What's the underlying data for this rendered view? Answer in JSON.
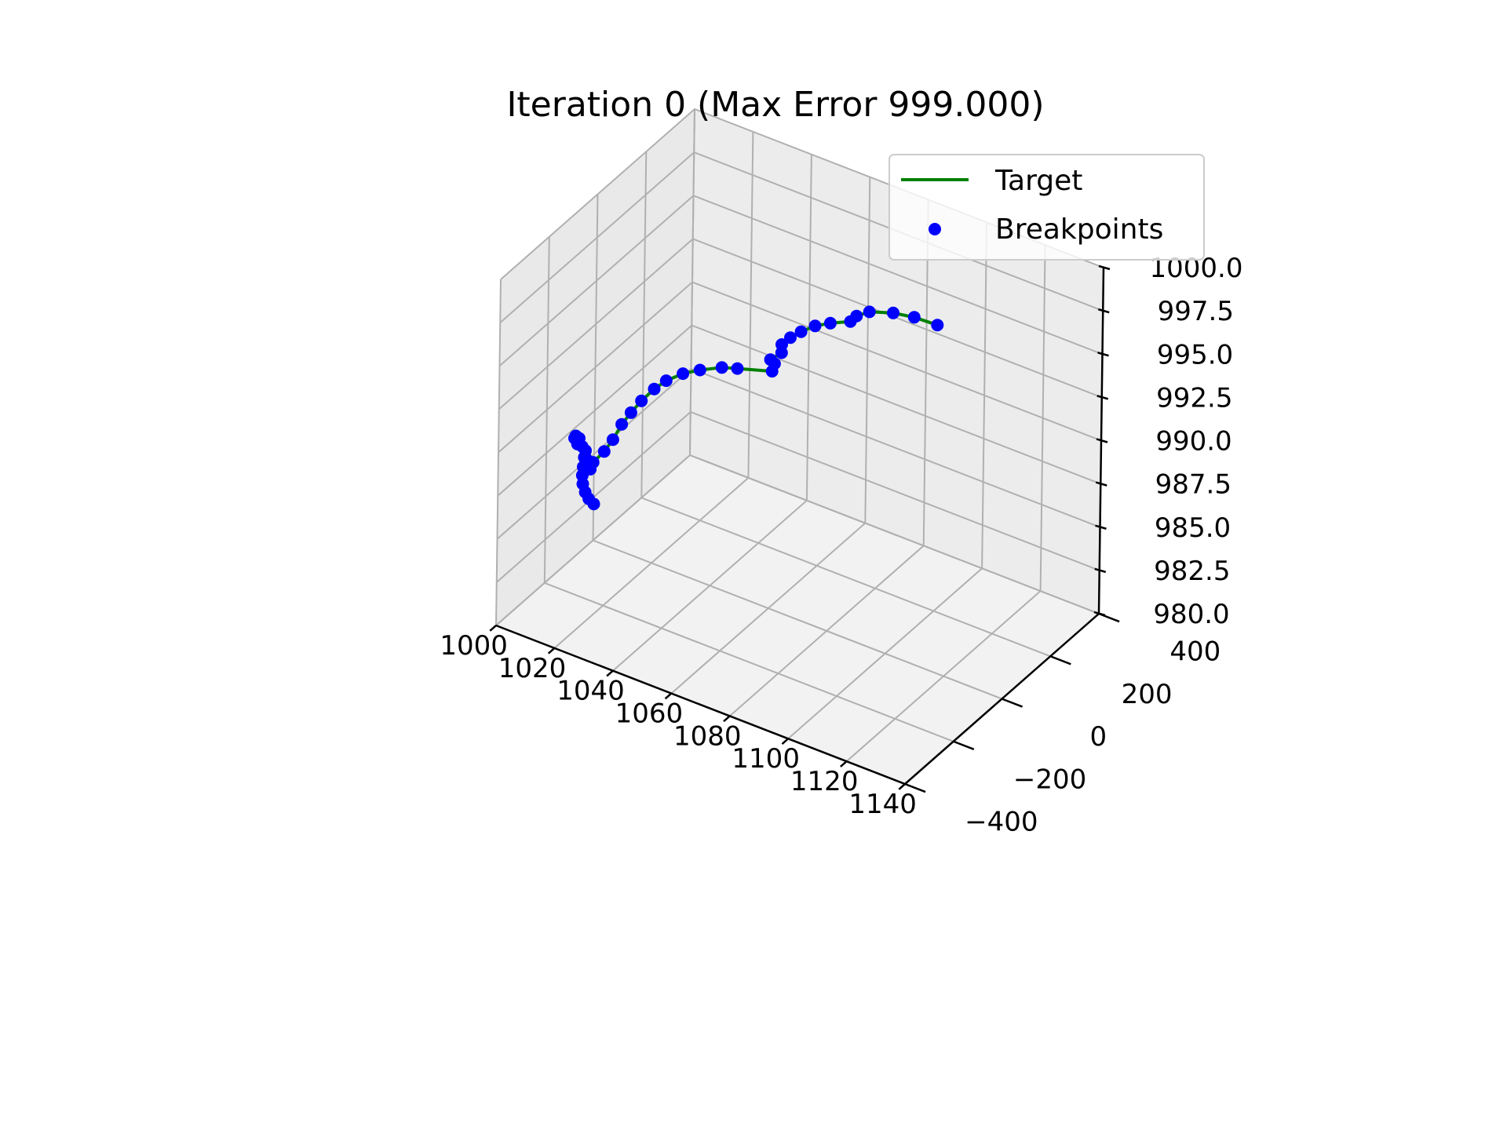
{
  "chart_data": {
    "type": "line3d",
    "title": "Iteration 0 (Max Error 999.000)",
    "xlabel": "",
    "ylabel": "",
    "zlabel": "",
    "xlim": [
      1000,
      1140
    ],
    "ylim": [
      -400,
      400
    ],
    "zlim": [
      980,
      1000
    ],
    "x_ticks": [
      "1000",
      "1020",
      "1040",
      "1060",
      "1080",
      "1100",
      "1120",
      "1140"
    ],
    "y_ticks": [
      "−400",
      "−200",
      "0",
      "200",
      "400"
    ],
    "z_ticks": [
      "980.0",
      "982.5",
      "985.0",
      "987.5",
      "990.0",
      "992.5",
      "995.0",
      "997.5",
      "1000.0"
    ],
    "grid": true,
    "legend": {
      "placement": "upper right",
      "entries": [
        {
          "label": "Target",
          "color": "#008000",
          "marker": "line"
        },
        {
          "label": "Breakpoints",
          "color": "#0000ff",
          "marker": "dot"
        }
      ]
    },
    "series": [
      {
        "name": "Target",
        "color": "#008000",
        "style": "line",
        "points": [
          [
            1001.0,
            -11.0,
            982.3
          ],
          [
            999.8,
            -17.5,
            982.6
          ],
          [
            999.0,
            -23.0,
            983.0
          ],
          [
            998.5,
            -27.5,
            983.5
          ],
          [
            998.4,
            -28.5,
            984.0
          ],
          [
            998.6,
            -28.0,
            984.5
          ],
          [
            999.2,
            -25.0,
            985.0
          ],
          [
            999.4,
            -29.0,
            985.5
          ],
          [
            998.0,
            -46.0,
            986.0
          ],
          [
            997.6,
            -53.5,
            986.4
          ],
          [
            998.2,
            -55.5,
            986.6
          ],
          [
            999.2,
            -53.5,
            986.5
          ],
          [
            999.8,
            -48.0,
            986.0
          ],
          [
            1000.0,
            -41.0,
            985.3
          ],
          [
            1000.0,
            -35.0,
            984.6
          ],
          [
            1001.4,
            -32.5,
            984.6
          ],
          [
            1001.6,
            -23.5,
            984.9
          ],
          [
            1005.0,
            -19.5,
            985.7
          ],
          [
            1007.1,
            -9.5,
            986.4
          ],
          [
            1009.2,
            0.5,
            987.3
          ],
          [
            1011.5,
            10.5,
            988.0
          ],
          [
            1014.0,
            22.5,
            988.7
          ],
          [
            1017.1,
            37.5,
            989.4
          ],
          [
            1020.0,
            51.5,
            989.9
          ],
          [
            1023.9,
            73.0,
            990.3
          ],
          [
            1027.9,
            95.0,
            990.5
          ],
          [
            1032.9,
            125.0,
            990.6
          ],
          [
            1036.4,
            147.0,
            990.5
          ],
          [
            1044.0,
            199.0,
            990.2
          ],
          [
            1045.3,
            193.0,
            990.8
          ],
          [
            1044.6,
            184.0,
            991.1
          ],
          [
            1047.7,
            192.0,
            991.6
          ],
          [
            1048.3,
            185.0,
            992.2
          ],
          [
            1050.8,
            190.0,
            992.7
          ],
          [
            1053.6,
            200.0,
            993.1
          ],
          [
            1057.2,
            214.0,
            993.5
          ],
          [
            1061.0,
            231.0,
            993.7
          ],
          [
            1065.8,
            256.0,
            993.8
          ],
          [
            1067.6,
            259.0,
            994.2
          ],
          [
            1071.4,
            266.0,
            994.6
          ],
          [
            1077.8,
            287.0,
            994.7
          ],
          [
            1083.5,
            305.0,
            994.6
          ],
          [
            1089.7,
            326.0,
            994.3
          ]
        ]
      },
      {
        "name": "Breakpoints",
        "color": "#0000ff",
        "style": "markers",
        "points": [
          [
            1001.0,
            -11.0,
            982.3
          ],
          [
            999.8,
            -17.5,
            982.6
          ],
          [
            999.0,
            -23.0,
            983.0
          ],
          [
            998.5,
            -27.5,
            983.5
          ],
          [
            998.4,
            -28.5,
            984.0
          ],
          [
            998.6,
            -28.0,
            984.5
          ],
          [
            999.2,
            -25.0,
            985.0
          ],
          [
            999.4,
            -29.0,
            985.5
          ],
          [
            998.0,
            -46.0,
            986.0
          ],
          [
            997.6,
            -53.5,
            986.4
          ],
          [
            998.2,
            -55.5,
            986.6
          ],
          [
            999.2,
            -53.5,
            986.5
          ],
          [
            999.8,
            -48.0,
            986.0
          ],
          [
            1000.0,
            -41.0,
            985.3
          ],
          [
            1000.0,
            -35.0,
            984.6
          ],
          [
            1001.4,
            -32.5,
            984.6
          ],
          [
            1001.6,
            -23.5,
            984.9
          ],
          [
            1005.0,
            -19.5,
            985.7
          ],
          [
            1007.1,
            -9.5,
            986.4
          ],
          [
            1009.2,
            0.5,
            987.3
          ],
          [
            1011.5,
            10.5,
            988.0
          ],
          [
            1014.0,
            22.5,
            988.7
          ],
          [
            1017.1,
            37.5,
            989.4
          ],
          [
            1020.0,
            51.5,
            989.9
          ],
          [
            1023.9,
            73.0,
            990.3
          ],
          [
            1027.9,
            95.0,
            990.5
          ],
          [
            1032.9,
            125.0,
            990.6
          ],
          [
            1036.4,
            147.0,
            990.5
          ],
          [
            1044.0,
            199.0,
            990.2
          ],
          [
            1045.3,
            193.0,
            990.8
          ],
          [
            1044.6,
            184.0,
            991.1
          ],
          [
            1047.7,
            192.0,
            991.6
          ],
          [
            1048.3,
            185.0,
            992.2
          ],
          [
            1050.8,
            190.0,
            992.7
          ],
          [
            1053.6,
            200.0,
            993.1
          ],
          [
            1057.2,
            214.0,
            993.5
          ],
          [
            1061.0,
            231.0,
            993.7
          ],
          [
            1065.8,
            256.0,
            993.8
          ],
          [
            1067.6,
            259.0,
            994.2
          ],
          [
            1071.4,
            266.0,
            994.6
          ],
          [
            1077.8,
            287.0,
            994.7
          ],
          [
            1083.5,
            305.0,
            994.6
          ],
          [
            1089.7,
            326.0,
            994.3
          ]
        ]
      }
    ]
  }
}
